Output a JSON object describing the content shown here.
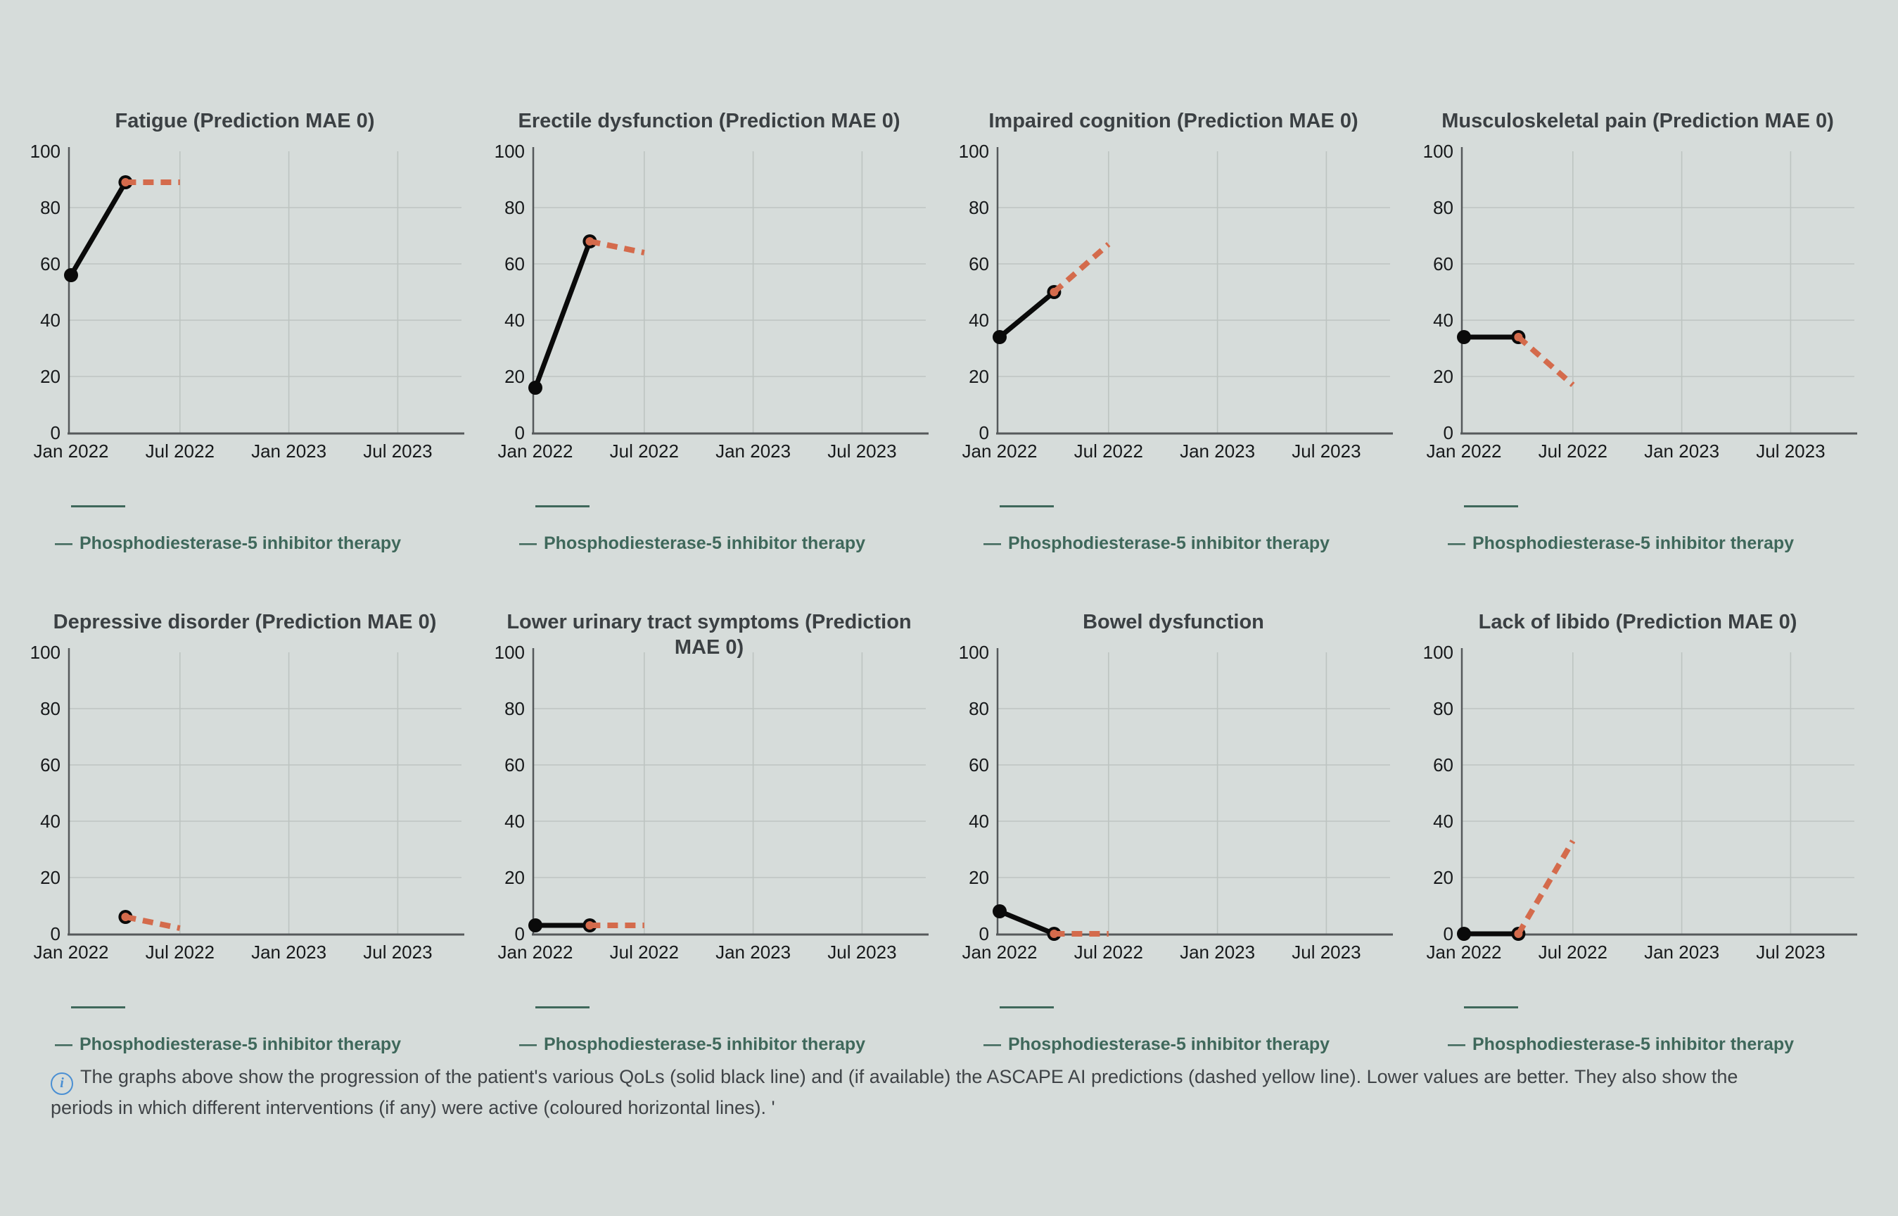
{
  "page_background": "#d6dcda",
  "colors": {
    "actual_line": "#0a0a0a",
    "prediction_line": "#d46b4c",
    "intervention_line": "#3f685b",
    "legend_text": "#3f685b",
    "title_text": "#3b4043",
    "tick_text": "#17191b",
    "grid_line": "#bdc4c1",
    "axis_line": "#55595b",
    "info_icon_blue": "#4a8fd3"
  },
  "legend": {
    "dash": "—",
    "label": "Phosphodiesterase-5 inhibitor therapy"
  },
  "axis": {
    "y_ticks": [
      0,
      20,
      40,
      60,
      80,
      100
    ],
    "y_max": 100,
    "x_ticks": [
      {
        "label": "Jan 2022",
        "month": 0
      },
      {
        "label": "Jul 2022",
        "month": 6
      },
      {
        "label": "Jan 2023",
        "month": 12
      },
      {
        "label": "Jul 2023",
        "month": 18
      }
    ],
    "x_range_months": [
      0,
      21
    ]
  },
  "chart_data": [
    {
      "type": "line",
      "title": "Fatigue (Prediction MAE 0)",
      "ylim": [
        0,
        100
      ],
      "grid": true,
      "series": [
        {
          "name": "QoL actual",
          "style": "solid-black",
          "points": [
            {
              "month": 0,
              "value": 56
            },
            {
              "month": 3,
              "value": 89
            }
          ]
        },
        {
          "name": "ASCAPE AI prediction",
          "style": "dashed-orange",
          "points": [
            {
              "month": 3,
              "value": 89
            },
            {
              "month": 6,
              "value": 89
            }
          ]
        }
      ],
      "intervention_period": {
        "label": "Phosphodiesterase-5 inhibitor therapy",
        "start_month": 0,
        "end_month": 3
      }
    },
    {
      "type": "line",
      "title": "Erectile dysfunction (Prediction MAE 0)",
      "ylim": [
        0,
        100
      ],
      "grid": true,
      "series": [
        {
          "name": "QoL actual",
          "style": "solid-black",
          "points": [
            {
              "month": 0,
              "value": 16
            },
            {
              "month": 3,
              "value": 68
            }
          ]
        },
        {
          "name": "ASCAPE AI prediction",
          "style": "dashed-orange",
          "points": [
            {
              "month": 3,
              "value": 68
            },
            {
              "month": 6,
              "value": 64
            }
          ]
        }
      ],
      "intervention_period": {
        "label": "Phosphodiesterase-5 inhibitor therapy",
        "start_month": 0,
        "end_month": 3
      }
    },
    {
      "type": "line",
      "title": "Impaired cognition (Prediction MAE 0)",
      "ylim": [
        0,
        100
      ],
      "grid": true,
      "series": [
        {
          "name": "QoL actual",
          "style": "solid-black",
          "points": [
            {
              "month": 0,
              "value": 34
            },
            {
              "month": 3,
              "value": 50
            }
          ]
        },
        {
          "name": "ASCAPE AI prediction",
          "style": "dashed-orange",
          "points": [
            {
              "month": 3,
              "value": 50
            },
            {
              "month": 6,
              "value": 67
            }
          ]
        }
      ],
      "intervention_period": {
        "label": "Phosphodiesterase-5 inhibitor therapy",
        "start_month": 0,
        "end_month": 3
      }
    },
    {
      "type": "line",
      "title": "Musculoskeletal pain (Prediction MAE 0)",
      "ylim": [
        0,
        100
      ],
      "grid": true,
      "series": [
        {
          "name": "QoL actual",
          "style": "solid-black",
          "points": [
            {
              "month": 0,
              "value": 34
            },
            {
              "month": 3,
              "value": 34
            }
          ]
        },
        {
          "name": "ASCAPE AI prediction",
          "style": "dashed-orange",
          "points": [
            {
              "month": 3,
              "value": 34
            },
            {
              "month": 6,
              "value": 17
            }
          ]
        }
      ],
      "intervention_period": {
        "label": "Phosphodiesterase-5 inhibitor therapy",
        "start_month": 0,
        "end_month": 3
      }
    },
    {
      "type": "line",
      "title": "Depressive disorder (Prediction MAE 0)",
      "ylim": [
        0,
        100
      ],
      "grid": true,
      "series": [
        {
          "name": "QoL actual",
          "style": "solid-black",
          "points": [
            {
              "month": 3,
              "value": 6
            }
          ]
        },
        {
          "name": "ASCAPE AI prediction",
          "style": "dashed-orange",
          "points": [
            {
              "month": 3,
              "value": 6
            },
            {
              "month": 6,
              "value": 2
            }
          ]
        }
      ],
      "intervention_period": {
        "label": "Phosphodiesterase-5 inhibitor therapy",
        "start_month": 0,
        "end_month": 3
      }
    },
    {
      "type": "line",
      "title": "Lower urinary tract symptoms (Prediction MAE 0)",
      "ylim": [
        0,
        100
      ],
      "grid": true,
      "series": [
        {
          "name": "QoL actual",
          "style": "solid-black",
          "points": [
            {
              "month": 0,
              "value": 3
            },
            {
              "month": 3,
              "value": 3
            }
          ]
        },
        {
          "name": "ASCAPE AI prediction",
          "style": "dashed-orange",
          "points": [
            {
              "month": 3,
              "value": 3
            },
            {
              "month": 6,
              "value": 3
            }
          ]
        }
      ],
      "intervention_period": {
        "label": "Phosphodiesterase-5 inhibitor therapy",
        "start_month": 0,
        "end_month": 3
      }
    },
    {
      "type": "line",
      "title": "Bowel dysfunction",
      "ylim": [
        0,
        100
      ],
      "grid": true,
      "series": [
        {
          "name": "QoL actual",
          "style": "solid-black",
          "points": [
            {
              "month": 0,
              "value": 8
            },
            {
              "month": 3,
              "value": 0
            }
          ]
        },
        {
          "name": "ASCAPE AI prediction",
          "style": "dashed-orange",
          "points": [
            {
              "month": 3,
              "value": 0
            },
            {
              "month": 6,
              "value": 0
            }
          ]
        }
      ],
      "intervention_period": {
        "label": "Phosphodiesterase-5 inhibitor therapy",
        "start_month": 0,
        "end_month": 3
      }
    },
    {
      "type": "line",
      "title": "Lack of libido (Prediction MAE 0)",
      "ylim": [
        0,
        100
      ],
      "grid": true,
      "series": [
        {
          "name": "QoL actual",
          "style": "solid-black",
          "points": [
            {
              "month": 0,
              "value": 0
            },
            {
              "month": 3,
              "value": 0
            }
          ]
        },
        {
          "name": "ASCAPE AI prediction",
          "style": "dashed-orange",
          "points": [
            {
              "month": 3,
              "value": 0
            },
            {
              "month": 6,
              "value": 33
            }
          ]
        }
      ],
      "intervention_period": {
        "label": "Phosphodiesterase-5 inhibitor therapy",
        "start_month": 0,
        "end_month": 3
      }
    }
  ],
  "footer": {
    "icon_glyph": "i",
    "text": "The graphs above show the progression of the patient's various QoLs (solid black line) and (if available) the ASCAPE AI predictions (dashed yellow line). Lower values are better. They also show the periods in which different interventions (if any) were active (coloured horizontal lines). '"
  }
}
